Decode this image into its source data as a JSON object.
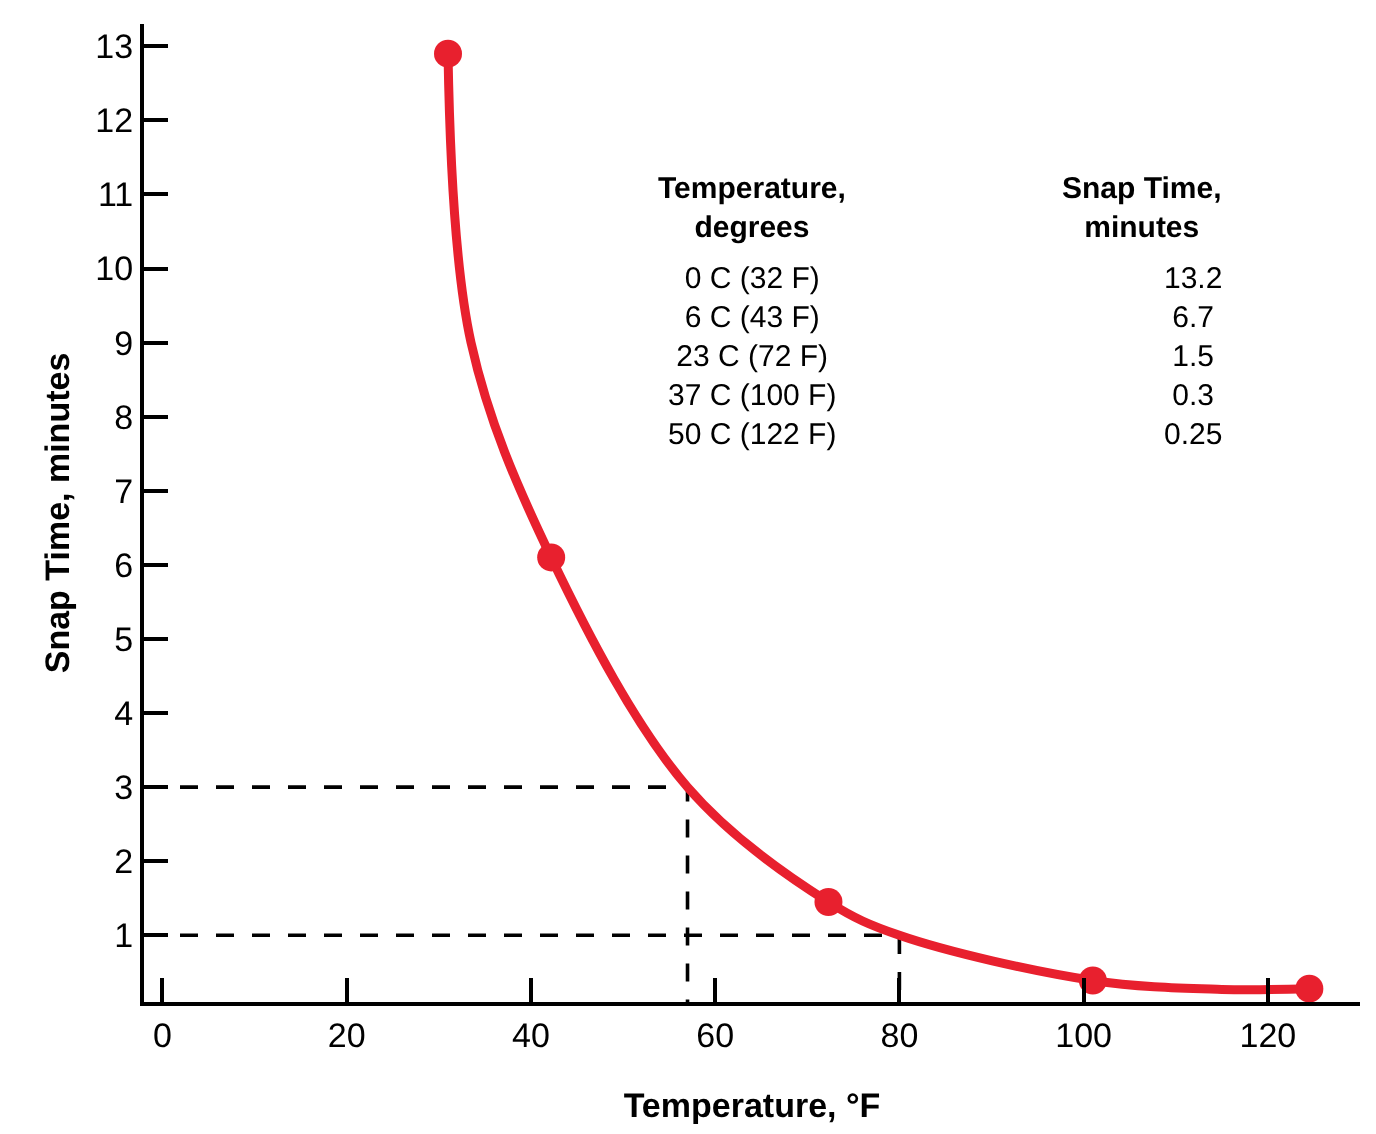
{
  "chart_data": {
    "type": "scatter",
    "xlabel": "Temperature, °F",
    "ylabel": "Snap Time, minutes",
    "xlim": [
      -2,
      130
    ],
    "ylim": [
      0.1,
      13.3
    ],
    "xticks": [
      0,
      20,
      40,
      60,
      80,
      100,
      120
    ],
    "yticks": [
      1,
      2,
      3,
      4,
      5,
      6,
      7,
      8,
      9,
      10,
      11,
      12,
      13
    ],
    "series": [
      {
        "type": "line",
        "color": "#000000",
        "line_style": "dashed",
        "marker": "none",
        "x": [
          -2,
          57,
          57
        ],
        "values": [
          3,
          3,
          0.1
        ]
      },
      {
        "type": "line",
        "color": "#000000",
        "line_style": "dashed",
        "marker": "none",
        "x": [
          -2,
          80,
          80
        ],
        "values": [
          1,
          1,
          0.1
        ]
      },
      {
        "type": "line",
        "color": "#e8202e",
        "line_style": "solid",
        "marker": "none",
        "x": [
          31,
          33.5,
          42.2,
          57,
          72.3,
          80,
          101,
          115,
          124.5
        ],
        "values": [
          12.9,
          9,
          6.1,
          3,
          1.45,
          1,
          0.39,
          0.27,
          0.28
        ]
      },
      {
        "color": "#e8202e",
        "marker": "circle",
        "x": [
          31,
          42.2,
          72.3,
          101,
          124.5
        ],
        "values": [
          12.9,
          6.1,
          1.45,
          0.39,
          0.28
        ]
      }
    ],
    "annotations": [
      "Temperature,\ndegrees",
      "Snap Time,\nminutes",
      "0 C (32 F)\n6 C (43 F)\n23 C (72 F)\n37 C (100 F)\n50 C (122 F)",
      "13.2\n6.7\n1.5\n0.3\n0.25"
    ]
  }
}
